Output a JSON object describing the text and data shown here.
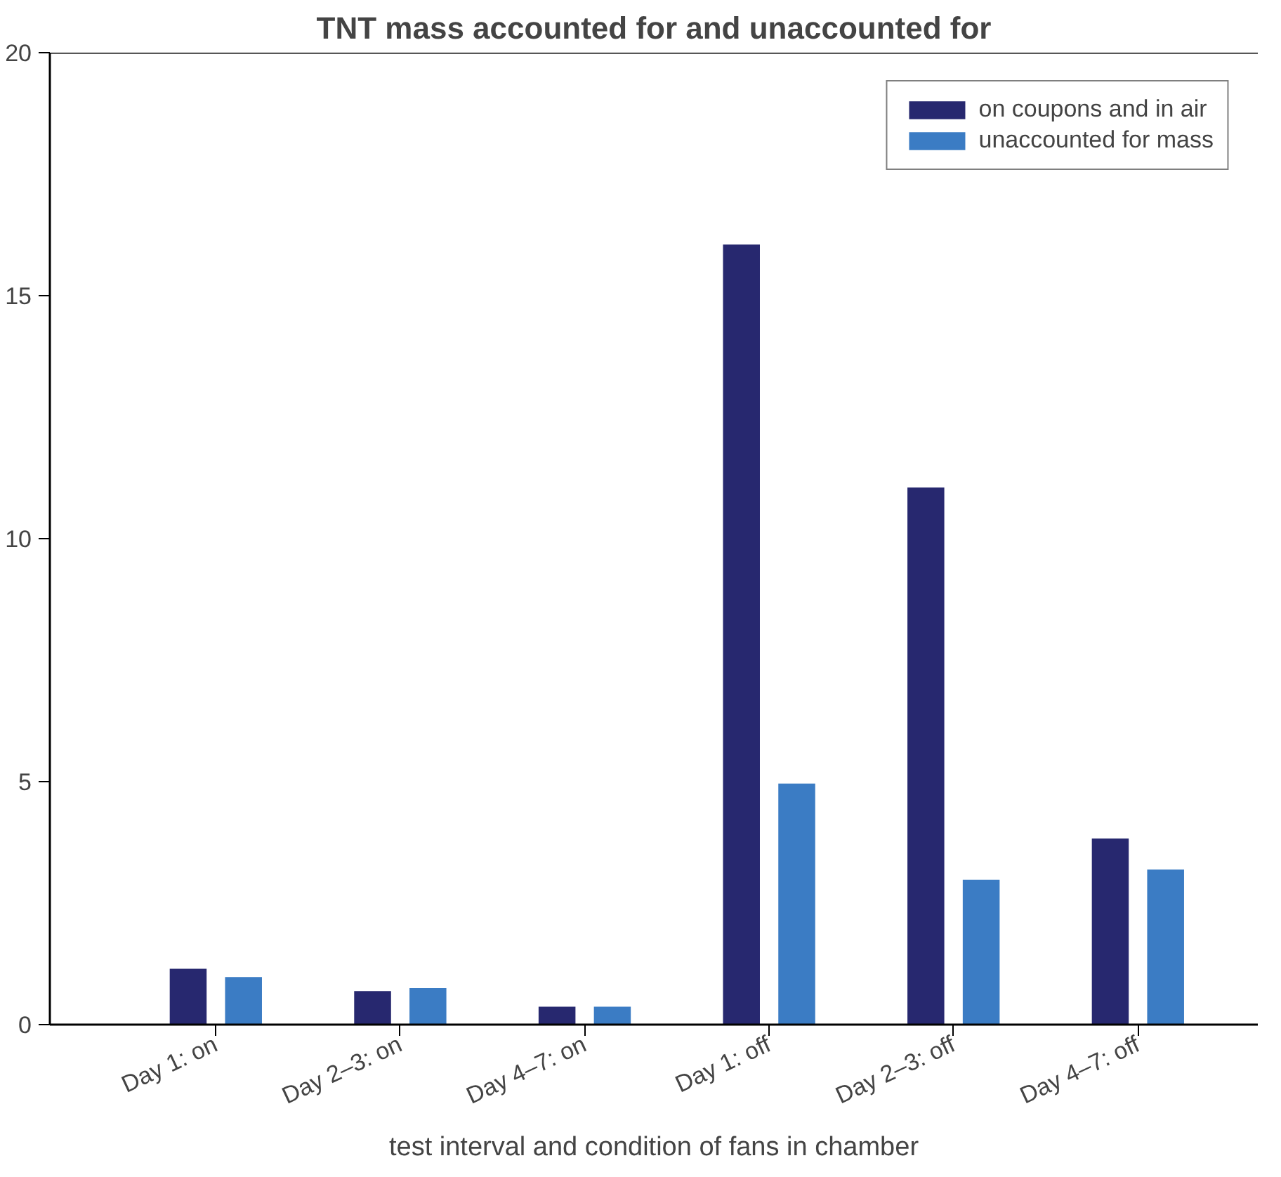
{
  "chart_data": {
    "type": "bar",
    "title": "TNT mass accounted for and unaccounted for",
    "xlabel": "test interval and condition of fans in chamber",
    "categories": [
      "Day 1: on",
      "Day 2–3: on",
      "Day 4–7: on",
      "Day 1: off",
      "Day 2–3: off",
      "Day 4–7: off"
    ],
    "series": [
      {
        "name": "on coupons and in air",
        "color": "#27286f",
        "values": [
          1.15,
          0.69,
          0.37,
          16.05,
          11.05,
          3.83
        ]
      },
      {
        "name": "unaccounted for mass",
        "color": "#3b7cc4",
        "values": [
          0.98,
          0.75,
          0.37,
          4.96,
          2.98,
          3.19
        ]
      }
    ],
    "ylim": [
      0,
      20
    ],
    "yticks": [
      0,
      5,
      10,
      15,
      20
    ],
    "grid": false,
    "legend": "top right"
  }
}
